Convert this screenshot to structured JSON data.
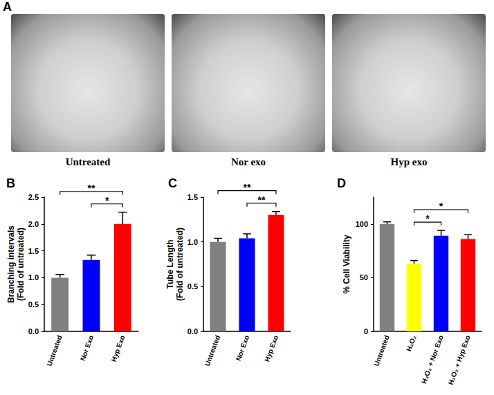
{
  "panel_a": {
    "title": "A",
    "images": [
      {
        "caption": "Untreated"
      },
      {
        "caption": "Nor exo"
      },
      {
        "caption": "Hyp exo"
      }
    ]
  },
  "chart_data": [
    {
      "type": "bar",
      "title": "B",
      "ylabel": "Branching intervals\n(Fold of untreated)",
      "categories": [
        "Untreated",
        "Nor Exo",
        "Hyp Exo"
      ],
      "values": [
        1.0,
        1.33,
        2.0
      ],
      "errors": [
        0.06,
        0.09,
        0.22
      ],
      "colors": [
        "#808080",
        "#0000ff",
        "#ff0000"
      ],
      "ylim": [
        0,
        2.5
      ],
      "yticks": [
        {
          "value": 0,
          "label": "0.0"
        },
        {
          "value": 0.5,
          "label": "0.5"
        },
        {
          "value": 1,
          "label": "1.0"
        },
        {
          "value": 1.5,
          "label": "1.5"
        },
        {
          "value": 2,
          "label": "2.0"
        },
        {
          "value": 2.5,
          "label": "2.5"
        }
      ],
      "grid": false,
      "annotations": [
        {
          "from": "Untreated",
          "to": "Hyp Exo",
          "label": "**"
        },
        {
          "from": "Nor Exo",
          "to": "Hyp Exo",
          "label": "*"
        }
      ]
    },
    {
      "type": "bar",
      "title": "C",
      "ylabel": "Tube Length\n(Fold of untreated)",
      "categories": [
        "Untreated",
        "Nor Exo",
        "Hyp Exo"
      ],
      "values": [
        1.0,
        1.04,
        1.3
      ],
      "errors": [
        0.04,
        0.05,
        0.04
      ],
      "colors": [
        "#808080",
        "#0000ff",
        "#ff0000"
      ],
      "ylim": [
        0,
        1.5
      ],
      "yticks": [
        {
          "value": 0,
          "label": "0.0"
        },
        {
          "value": 0.5,
          "label": "0.5"
        },
        {
          "value": 1,
          "label": "1.0"
        },
        {
          "value": 1.5,
          "label": "1.5"
        }
      ],
      "grid": false,
      "annotations": [
        {
          "from": "Untreated",
          "to": "Hyp Exo",
          "label": "**"
        },
        {
          "from": "Nor Exo",
          "to": "Hyp Exo",
          "label": "**"
        }
      ]
    },
    {
      "type": "bar",
      "title": "D",
      "ylabel": "% Cell Viability",
      "categories": [
        "Untreated",
        "H₂O₂",
        "H₂O₂ + Nor Exo",
        "H₂O₂ + Hyp Exo"
      ],
      "values": [
        100,
        63,
        89,
        86
      ],
      "errors": [
        2,
        3,
        5,
        4
      ],
      "colors": [
        "#808080",
        "#ffff00",
        "#0000ff",
        "#ff0000"
      ],
      "ylim": [
        0,
        125
      ],
      "yticks": [
        0,
        50,
        100
      ],
      "grid": false,
      "annotations": [
        {
          "from": "H₂O₂",
          "to": "H₂O₂ + Nor Exo",
          "label": "*"
        },
        {
          "from": "H₂O₂",
          "to": "H₂O₂ + Hyp Exo",
          "label": "*"
        }
      ]
    }
  ]
}
